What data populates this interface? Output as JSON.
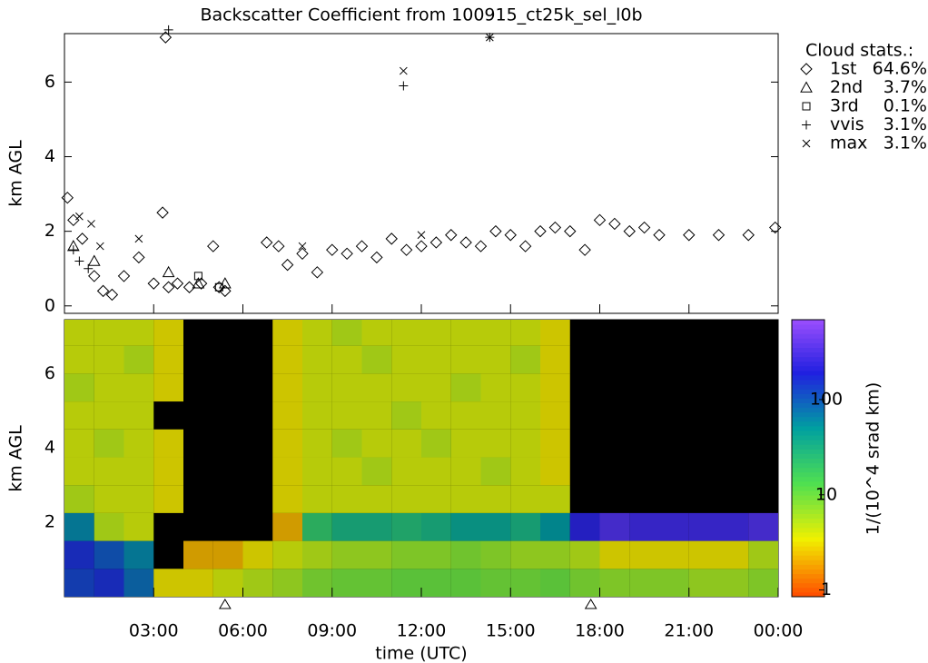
{
  "chart_data": [
    {
      "type": "scatter",
      "title": "Backscatter Coefficient from 100915_ct25k_sel_l0b",
      "ylabel": "km AGL",
      "xlim": [
        0,
        24
      ],
      "ylim": [
        -0.2,
        7.3
      ],
      "yticks": [
        0,
        2,
        4,
        6
      ],
      "legend_title": "Cloud stats.:",
      "series": [
        {
          "name": "1st",
          "share": "64.6%",
          "marker": "diamond",
          "color": "#000000",
          "x": [
            0.1,
            0.3,
            0.6,
            1.0,
            1.3,
            1.6,
            2.0,
            2.5,
            3.0,
            3.3,
            3.4,
            3.5,
            3.8,
            4.2,
            4.6,
            5.0,
            5.2,
            5.4,
            6.8,
            7.2,
            7.5,
            8.0,
            8.5,
            9.0,
            9.5,
            10.0,
            10.5,
            11.0,
            11.5,
            12.0,
            12.5,
            13.0,
            13.5,
            14.0,
            14.5,
            15.0,
            15.5,
            16.0,
            16.5,
            17.0,
            17.5,
            18.0,
            18.5,
            19.0,
            19.5,
            20.0,
            21.0,
            22.0,
            23.0,
            23.9
          ],
          "y": [
            2.9,
            2.3,
            1.8,
            0.8,
            0.4,
            0.3,
            0.8,
            1.3,
            0.6,
            2.5,
            7.2,
            0.5,
            0.6,
            0.5,
            0.6,
            1.6,
            0.5,
            0.4,
            1.7,
            1.6,
            1.1,
            1.4,
            0.9,
            1.5,
            1.4,
            1.6,
            1.3,
            1.8,
            1.5,
            1.6,
            1.7,
            1.9,
            1.7,
            1.6,
            2.0,
            1.9,
            1.6,
            2.0,
            2.1,
            2.0,
            1.5,
            2.3,
            2.2,
            2.0,
            2.1,
            1.9,
            1.9,
            1.9,
            1.9,
            2.1
          ]
        },
        {
          "name": "2nd",
          "share": "3.7%",
          "marker": "triangle",
          "color": "#000000",
          "x": [
            0.3,
            1.0,
            3.5,
            4.5,
            5.4
          ],
          "y": [
            1.6,
            1.2,
            0.9,
            0.6,
            0.6
          ]
        },
        {
          "name": "3rd",
          "share": "0.1%",
          "marker": "square",
          "color": "#000000",
          "x": [
            4.5,
            5.2
          ],
          "y": [
            0.8,
            0.5
          ]
        },
        {
          "name": "vvis",
          "share": "3.1%",
          "marker": "plus",
          "color": "#000000",
          "x": [
            0.3,
            0.5,
            0.8,
            3.5,
            11.4,
            14.3
          ],
          "y": [
            1.5,
            1.2,
            1.0,
            7.4,
            5.9,
            7.2
          ]
        },
        {
          "name": "max",
          "share": "3.1%",
          "marker": "x",
          "color": "#000000",
          "x": [
            0.5,
            0.9,
            1.2,
            2.5,
            8.0,
            11.4,
            12.0,
            14.3
          ],
          "y": [
            2.4,
            2.2,
            1.6,
            1.8,
            1.6,
            6.3,
            1.9,
            7.2
          ]
        }
      ]
    },
    {
      "type": "heatmap",
      "xlabel": "time (UTC)",
      "ylabel": "km AGL",
      "xlim": [
        0,
        24
      ],
      "ylim": [
        0,
        7.45
      ],
      "xticks": [
        {
          "value": 3,
          "label": "03:00"
        },
        {
          "value": 6,
          "label": "06:00"
        },
        {
          "value": 9,
          "label": "09:00"
        },
        {
          "value": 12,
          "label": "12:00"
        },
        {
          "value": 15,
          "label": "15:00"
        },
        {
          "value": 18,
          "label": "18:00"
        },
        {
          "value": 21,
          "label": "21:00"
        },
        {
          "value": 24,
          "label": "00:00"
        }
      ],
      "yticks": [
        2,
        4,
        6
      ],
      "x_bins": [
        0,
        1,
        2,
        3,
        4,
        5,
        6,
        7,
        8,
        9,
        10,
        11,
        12,
        13,
        14,
        15,
        16,
        17,
        18,
        19,
        20,
        21,
        22,
        23,
        24
      ],
      "y_bins": [
        0,
        0.75,
        1.5,
        2.25,
        3,
        3.75,
        4.5,
        5.25,
        6,
        6.75,
        7.5
      ],
      "z": [
        [
          120,
          150,
          80,
          3,
          3,
          4,
          5,
          6,
          8,
          9,
          9,
          10,
          10,
          10,
          9,
          9,
          10,
          8,
          7,
          7,
          7,
          6,
          6,
          7
        ],
        [
          150,
          100,
          60,
          null,
          2,
          2,
          3,
          4,
          5,
          6,
          6,
          7,
          7,
          8,
          7,
          6,
          6,
          5,
          3,
          3,
          3,
          3,
          3,
          5
        ],
        [
          60,
          5,
          4,
          null,
          null,
          null,
          null,
          2,
          20,
          30,
          30,
          25,
          30,
          40,
          40,
          30,
          50,
          200,
          300,
          250,
          250,
          250,
          250,
          300
        ],
        [
          5,
          4,
          4,
          3,
          null,
          null,
          null,
          3,
          4,
          4,
          4,
          4,
          4,
          4,
          4,
          4,
          4,
          null,
          null,
          null,
          null,
          null,
          null,
          null
        ],
        [
          4,
          4,
          4,
          3,
          null,
          null,
          null,
          3,
          4,
          4,
          5,
          4,
          4,
          4,
          5,
          4,
          3,
          null,
          null,
          null,
          null,
          null,
          null,
          null
        ],
        [
          4,
          5,
          4,
          3,
          null,
          null,
          null,
          3,
          4,
          5,
          4,
          4,
          5,
          4,
          4,
          4,
          3,
          null,
          null,
          null,
          null,
          null,
          null,
          null
        ],
        [
          4,
          4,
          4,
          null,
          null,
          null,
          null,
          3,
          4,
          4,
          4,
          5,
          4,
          4,
          4,
          4,
          3,
          null,
          null,
          null,
          null,
          null,
          null,
          null
        ],
        [
          5,
          4,
          4,
          3,
          null,
          null,
          null,
          3,
          4,
          4,
          4,
          4,
          4,
          5,
          4,
          4,
          3,
          null,
          null,
          null,
          null,
          null,
          null,
          null
        ],
        [
          4,
          4,
          5,
          3,
          null,
          null,
          null,
          3,
          4,
          4,
          5,
          4,
          4,
          4,
          4,
          5,
          3,
          null,
          null,
          null,
          null,
          null,
          null,
          null
        ],
        [
          4,
          4,
          4,
          3,
          null,
          null,
          null,
          3,
          4,
          5,
          4,
          4,
          4,
          4,
          4,
          4,
          3,
          null,
          null,
          null,
          null,
          null,
          null,
          null
        ]
      ],
      "colorbar_label": "1/(10^4 srad km)",
      "zlim": [
        0.85,
        690
      ],
      "zticks": [
        1,
        10,
        100
      ],
      "log_color": true,
      "colormap": [
        "#ff5000",
        "#f0f000",
        "#50e050",
        "#00a0a0",
        "#2020e0",
        "#a050ff"
      ],
      "axis_markers": [
        5.4,
        17.7
      ]
    }
  ]
}
